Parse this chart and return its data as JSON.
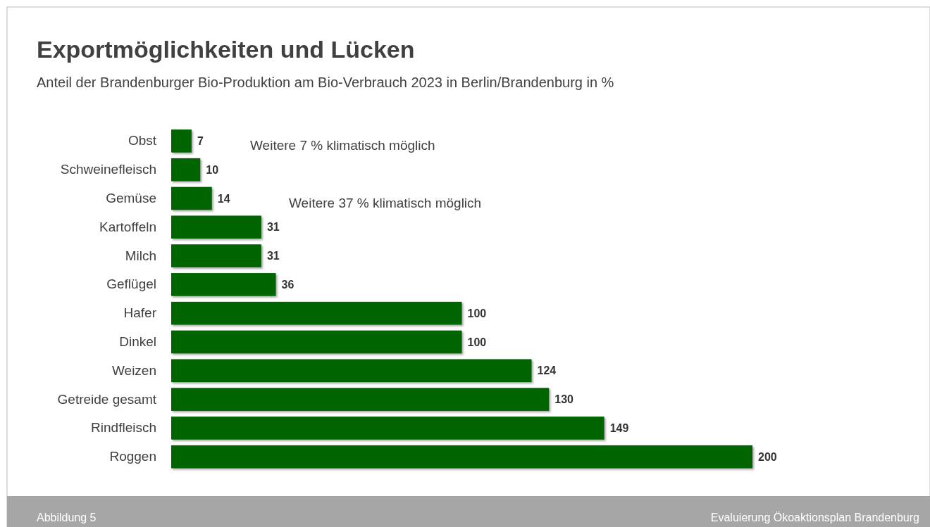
{
  "chart_data": {
    "type": "bar",
    "orientation": "horizontal",
    "title": "Exportmöglichkeiten und Lücken",
    "subtitle": "Anteil der Brandenburger Bio-Produktion am Bio-Verbrauch 2023 in Berlin/Brandenburg in %",
    "categories": [
      "Obst",
      "Schweinefleisch",
      "Gemüse",
      "Kartoffeln",
      "Milch",
      "Geflügel",
      "Hafer",
      "Dinkel",
      "Weizen",
      "Getreide gesamt",
      "Rindfleisch",
      "Roggen"
    ],
    "values": [
      7,
      10,
      14,
      31,
      31,
      36,
      100,
      100,
      124,
      130,
      149,
      200
    ],
    "color": "#006400",
    "data_labels": true,
    "annotations": [
      "Weitere 7 % klimatisch möglich",
      "Weitere 37 % klimatisch möglich",
      "Abbildung 5",
      "Evaluierung Ökoaktionsplan Brandenburg"
    ]
  }
}
